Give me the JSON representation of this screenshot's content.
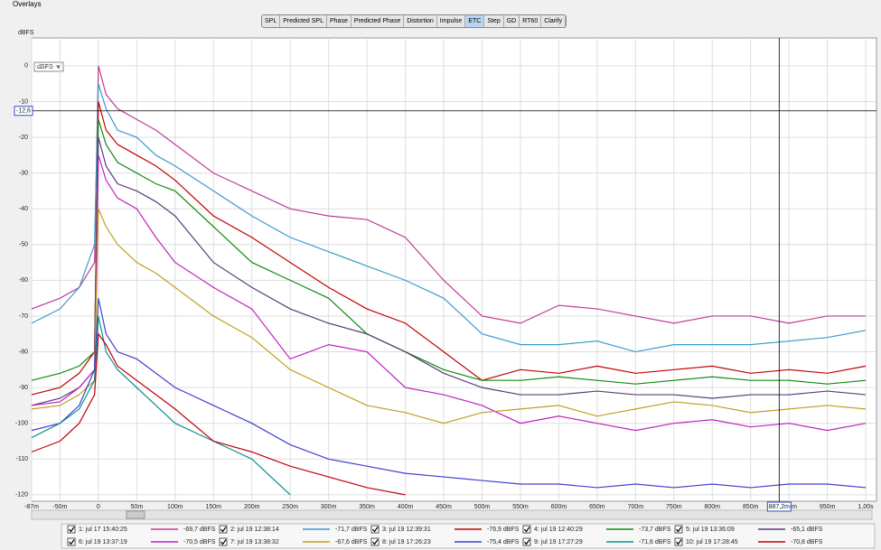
{
  "window": {
    "title": "Overlays"
  },
  "tabs": [
    "SPL",
    "Predicted SPL",
    "Phase",
    "Predicted Phase",
    "Distortion",
    "Impulse",
    "ETC",
    "Step",
    "GD",
    "RT60",
    "Clarify"
  ],
  "active_tab": 6,
  "unit_selector": "dBFS",
  "chart_data": {
    "type": "line",
    "y_label": "dBFS",
    "xlim": [
      -87,
      1014
    ],
    "ylim": [
      -121.8,
      7.8
    ],
    "grid": true,
    "xticks": [
      {
        "value": -87,
        "label": "-87m"
      },
      {
        "value": -50,
        "label": "-50m"
      },
      0,
      {
        "value": 50,
        "label": "50m"
      },
      {
        "value": 100,
        "label": "100m"
      },
      {
        "value": 150,
        "label": "150m"
      },
      {
        "value": 200,
        "label": "200m"
      },
      {
        "value": 250,
        "label": "250m"
      },
      {
        "value": 300,
        "label": "300m"
      },
      {
        "value": 350,
        "label": "350m"
      },
      {
        "value": 400,
        "label": "400m"
      },
      {
        "value": 450,
        "label": "450m"
      },
      {
        "value": 500,
        "label": "500m"
      },
      {
        "value": 550,
        "label": "550m"
      },
      {
        "value": 600,
        "label": "600m"
      },
      {
        "value": 650,
        "label": "650m"
      },
      {
        "value": 700,
        "label": "700m"
      },
      {
        "value": 750,
        "label": "750m"
      },
      {
        "value": 800,
        "label": "800m"
      },
      {
        "value": 850,
        "label": "850m"
      },
      {
        "value": 900,
        "label": "900m"
      },
      {
        "value": 950,
        "label": "950m"
      },
      {
        "value": 1000,
        "label": "1,00s"
      }
    ],
    "yticks": [
      0,
      -10,
      -20,
      -30,
      -40,
      -50,
      -60,
      -70,
      -80,
      -90,
      -100,
      -110,
      -120
    ],
    "cursor": {
      "x": {
        "value": 887.2,
        "label": "887,2m"
      },
      "y": {
        "value": -12.6,
        "label": "-12,6"
      }
    },
    "x": [
      -87,
      -50,
      -25,
      -5,
      0,
      10,
      25,
      50,
      75,
      100,
      150,
      200,
      250,
      300,
      350,
      400,
      450,
      500,
      550,
      600,
      650,
      700,
      750,
      800,
      850,
      900,
      950,
      1000
    ],
    "series": [
      {
        "name": "1: jul 17 15:40:25",
        "legend_label": "-69,7 dBFS",
        "color": "#c03c96",
        "values": [
          -68,
          -65,
          -62,
          -55,
          0,
          -8,
          -12,
          -15,
          -18,
          -22,
          -30,
          -35,
          -40,
          -42,
          -43,
          -48,
          -60,
          -70,
          -72,
          -67,
          -68,
          -70,
          -72,
          -70,
          -70,
          -72,
          -70,
          -70
        ]
      },
      {
        "name": "2: jul 19 12:38:14",
        "legend_label": "-71,7 dBFS",
        "color": "#3a9ccc",
        "values": [
          -72,
          -68,
          -62,
          -50,
          -5,
          -12,
          -18,
          -20,
          -25,
          -28,
          -35,
          -42,
          -48,
          -52,
          -56,
          -60,
          -65,
          -75,
          -78,
          -78,
          -77,
          -80,
          -78,
          -78,
          -78,
          -77,
          -76,
          -74
        ]
      },
      {
        "name": "3: jul 19 12:39:31",
        "legend_label": "-76,9 dBFS",
        "color": "#c00000",
        "values": [
          -92,
          -90,
          -86,
          -80,
          -10,
          -18,
          -22,
          -25,
          -28,
          -32,
          -42,
          -48,
          -55,
          -62,
          -68,
          -72,
          -80,
          -88,
          -85,
          -86,
          -84,
          -86,
          -85,
          -84,
          -86,
          -85,
          -86,
          -84
        ]
      },
      {
        "name": "4: jul 19 12:40:29",
        "legend_label": "-73,7 dBFS",
        "color": "#108a10",
        "values": [
          -88,
          -86,
          -84,
          -80,
          -15,
          -22,
          -27,
          -30,
          -33,
          -35,
          -45,
          -55,
          -60,
          -65,
          -75,
          -80,
          -85,
          -88,
          -88,
          -87,
          -88,
          -89,
          -88,
          -87,
          -88,
          -88,
          -89,
          -88
        ]
      },
      {
        "name": "5: jul 19 13:36:09",
        "legend_label": "-65,1 dBFS",
        "color": "#5a3c7a",
        "values": [
          -95,
          -93,
          -90,
          -85,
          -20,
          -28,
          -33,
          -35,
          -38,
          -42,
          -55,
          -62,
          -68,
          -72,
          -75,
          -80,
          -86,
          -90,
          -92,
          -92,
          -91,
          -92,
          -92,
          -93,
          -92,
          -92,
          -91,
          -92
        ]
      },
      {
        "name": "6: jul 19 13:37:19",
        "legend_label": "-70,5 dBFS",
        "color": "#c020c0",
        "values": [
          -95,
          -94,
          -90,
          -85,
          -25,
          -32,
          -37,
          -40,
          -48,
          -55,
          -62,
          -68,
          -82,
          -78,
          -80,
          -90,
          -92,
          -95,
          -100,
          -98,
          -100,
          -102,
          -100,
          -99,
          -101,
          -100,
          -102,
          -100
        ]
      },
      {
        "name": "7: jul 19 13:38:32",
        "legend_label": "-67,6 dBFS",
        "color": "#c0a020",
        "values": [
          -96,
          -95,
          -92,
          -88,
          -40,
          -45,
          -50,
          -55,
          -58,
          -62,
          -70,
          -76,
          -85,
          -90,
          -95,
          -97,
          -100,
          -97,
          -96,
          -95,
          -98,
          -96,
          -94,
          -95,
          -97,
          -96,
          -95,
          -96
        ]
      },
      {
        "name": "8: jul 19 17:26:23",
        "legend_label": "-75,4 dBFS",
        "color": "#4040d0",
        "values": [
          -102,
          -100,
          -95,
          -85,
          -65,
          -75,
          -80,
          -82,
          -86,
          -90,
          -95,
          -100,
          -106,
          -110,
          -112,
          -114,
          -115,
          -116,
          -117,
          -117,
          -118,
          -117,
          -118,
          -117,
          -118,
          -117,
          -117,
          -118
        ]
      },
      {
        "name": "9: jul 19 17:27:29",
        "legend_label": "-71,6 dBFS",
        "color": "#109090",
        "values": [
          -104,
          -100,
          -96,
          -88,
          -70,
          -80,
          -85,
          -90,
          -95,
          -100,
          -105,
          -110,
          -120,
          null,
          null,
          null,
          null,
          null,
          null,
          null,
          null,
          null,
          null,
          null,
          null,
          null,
          null,
          null
        ]
      },
      {
        "name": "10: jul 19 17:28:45",
        "legend_label": "-70,8 dBFS",
        "color": "#c00010",
        "values": [
          -108,
          -105,
          -100,
          -92,
          -75,
          -78,
          -84,
          -88,
          -92,
          -96,
          -105,
          -108,
          -112,
          -115,
          -118,
          -120,
          null,
          null,
          null,
          null,
          null,
          null,
          null,
          null,
          null,
          null,
          null,
          null
        ]
      }
    ]
  }
}
